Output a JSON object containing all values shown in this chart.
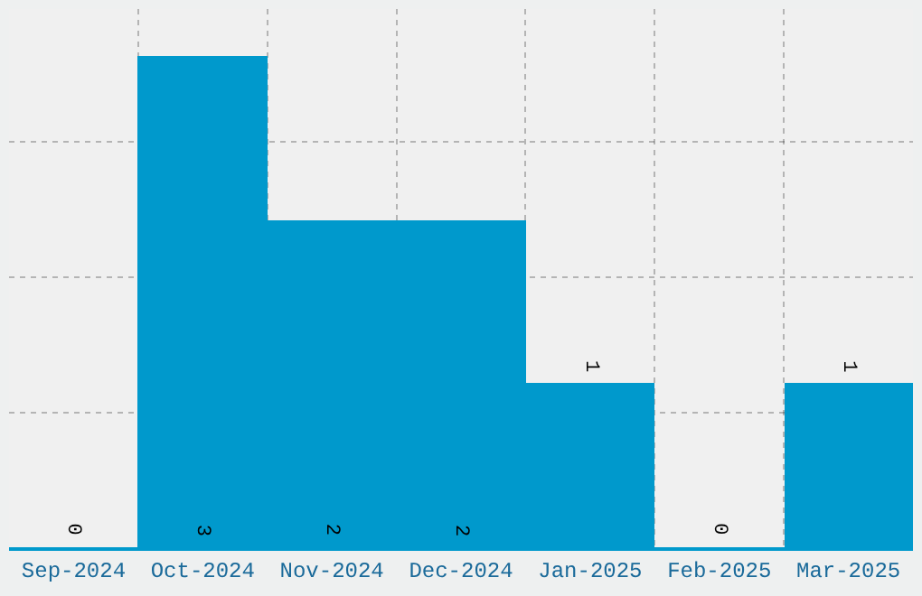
{
  "chart_data": {
    "type": "bar",
    "categories": [
      "Sep-2024",
      "Oct-2024",
      "Nov-2024",
      "Dec-2024",
      "Jan-2025",
      "Feb-2025",
      "Mar-2025"
    ],
    "values": [
      0,
      3,
      2,
      2,
      1,
      0,
      1
    ],
    "color": "#0099cc",
    "data_labels": true,
    "ylim": [
      0,
      3.29
    ],
    "yticks": [
      {
        "value": 0.82,
        "label": null
      },
      {
        "value": 1.65,
        "label": null
      },
      {
        "value": 2.48,
        "label": null
      }
    ],
    "tick_labels": "x",
    "grid": true,
    "legend": false
  }
}
